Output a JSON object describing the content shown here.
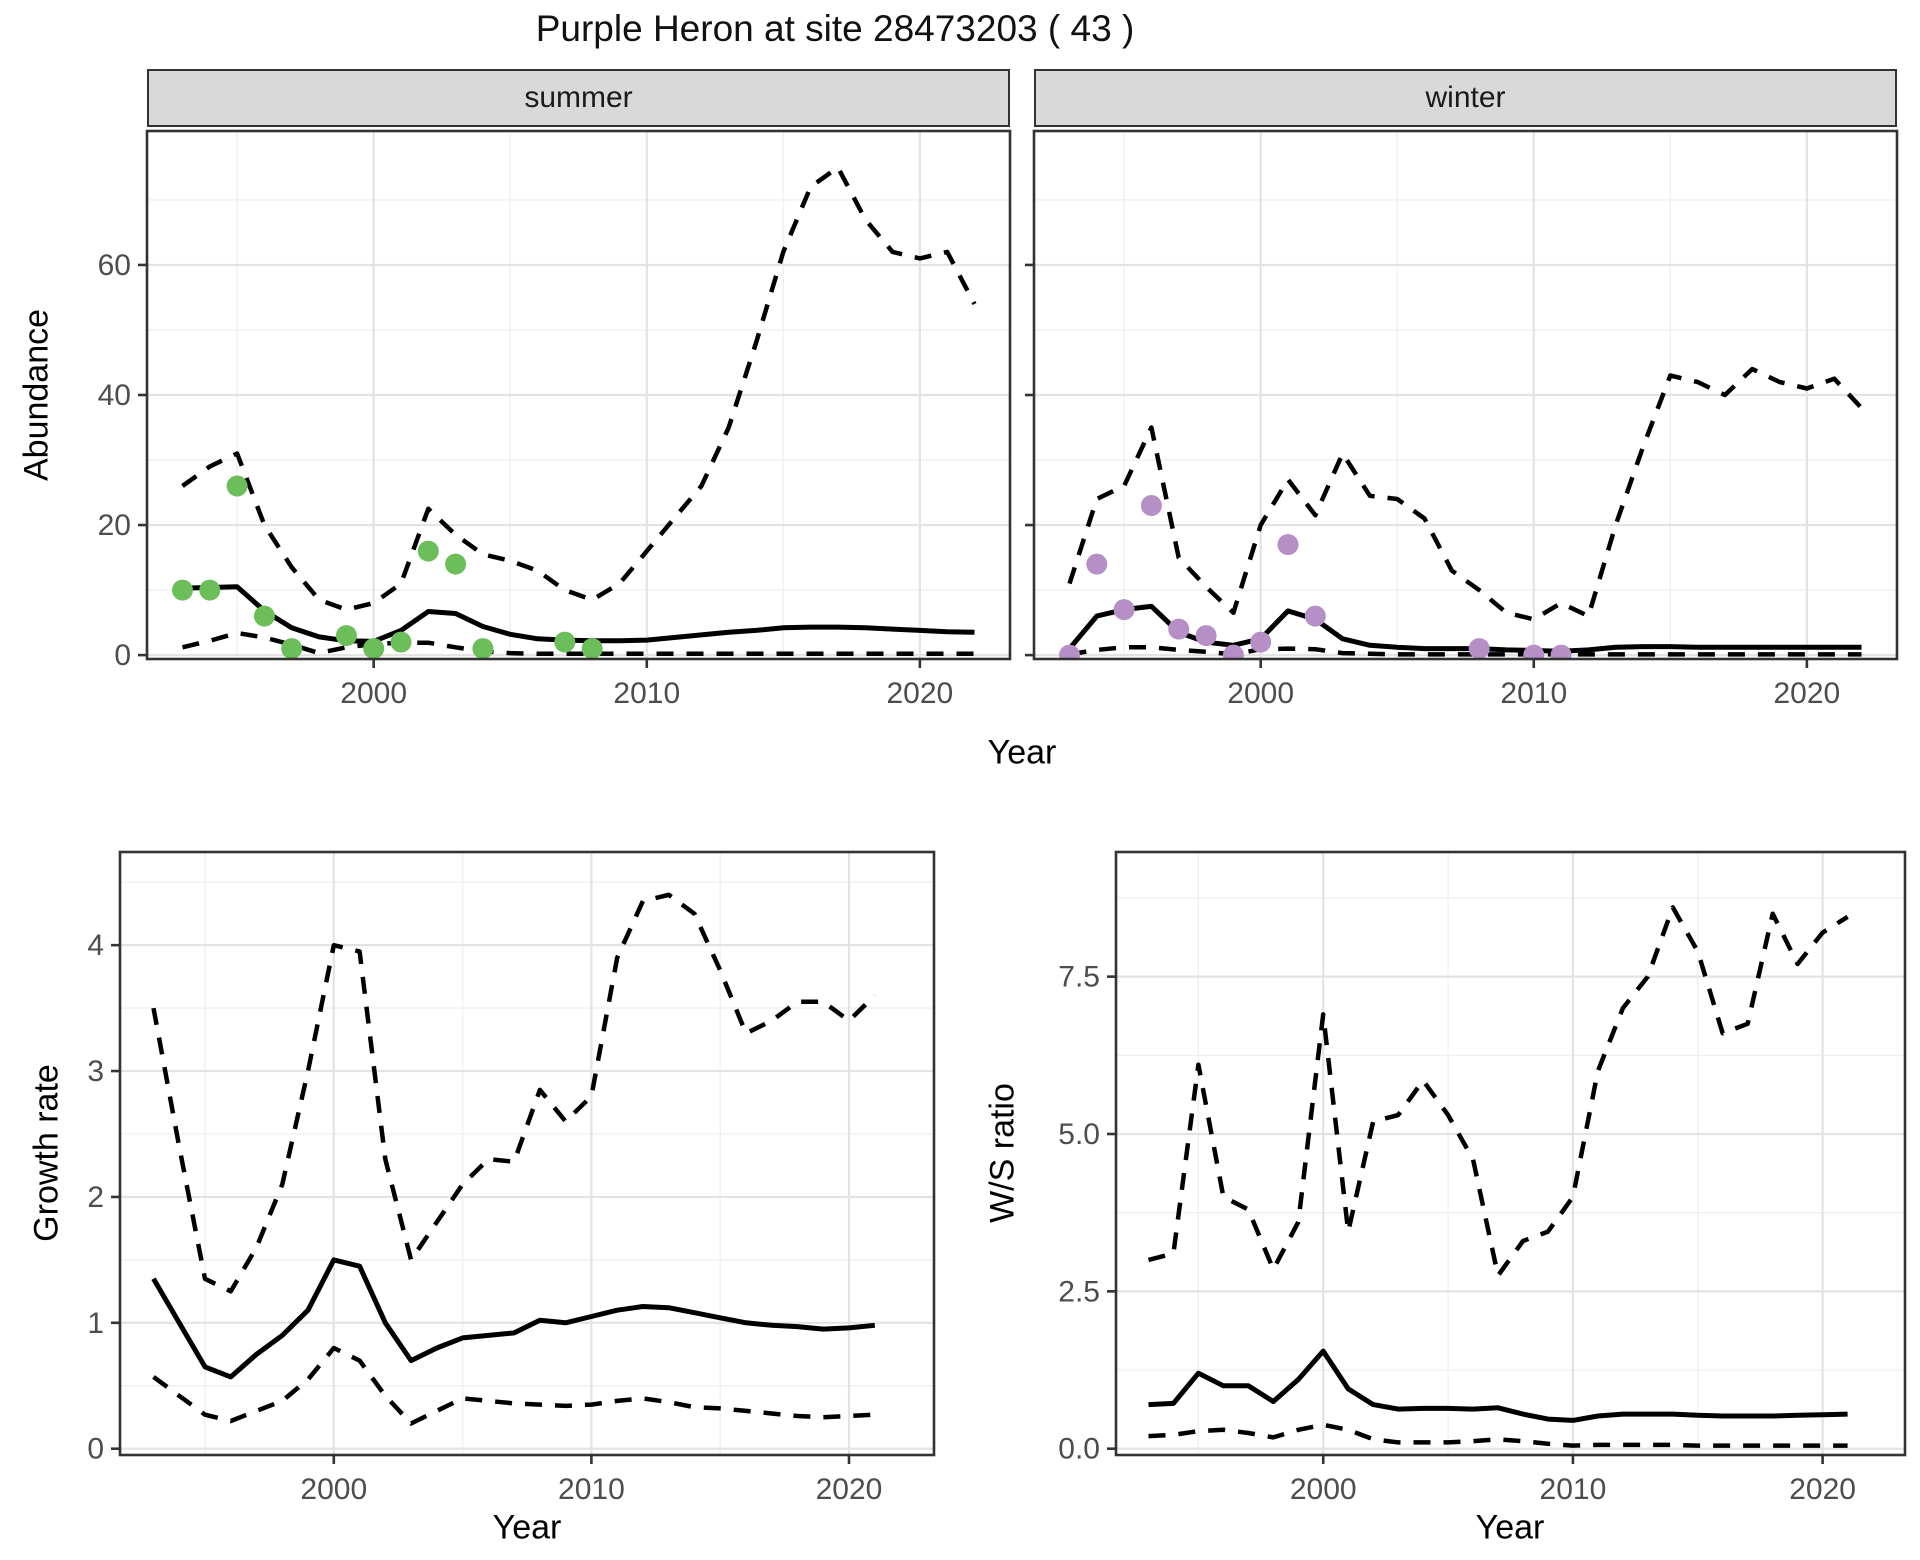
{
  "title": "Purple Heron at site 28473203 ( 43 )",
  "facets": {
    "summer": "summer",
    "winter": "winter"
  },
  "axes": {
    "abundance": "Abundance",
    "growth": "Growth rate",
    "ws": "W/S ratio",
    "year": "Year"
  },
  "colors": {
    "summer_dot": "#6CBE5B",
    "winter_dot": "#B58FC6",
    "line": "#000000",
    "grid_major": "#e3e3e3",
    "grid_minor": "#f0f0f0",
    "panel_border": "#333333",
    "strip_bg": "#d9d9d9",
    "tick_text": "#4d4d4d"
  },
  "chart_data": [
    {
      "name": "abundance-summer",
      "type": "line",
      "facet": "summer",
      "ylabel": "Abundance",
      "xlabel": "Year",
      "xlim": [
        1991.7,
        2023.3
      ],
      "ylim": [
        -0.6,
        80.6
      ],
      "xticks": {
        "major": [
          2000,
          2010,
          2020
        ],
        "minor": [
          1995,
          2005,
          2015
        ],
        "labels": [
          "2000",
          "2010",
          "2020"
        ]
      },
      "yticks": {
        "major": [
          0,
          20,
          40,
          60
        ],
        "minor": [
          10,
          30,
          50,
          70
        ],
        "labels": [
          "0",
          "20",
          "40",
          "60"
        ]
      },
      "x": [
        1993,
        1994,
        1995,
        1996,
        1997,
        1998,
        1999,
        2000,
        2001,
        2002,
        2003,
        2004,
        2005,
        2006,
        2007,
        2008,
        2009,
        2010,
        2011,
        2012,
        2013,
        2014,
        2015,
        2016,
        2017,
        2018,
        2019,
        2020,
        2021,
        2022
      ],
      "series": [
        {
          "name": "upper-ci",
          "style": "dashed",
          "values": [
            26,
            29,
            31,
            20,
            13.5,
            8.5,
            7,
            8,
            11,
            22.5,
            18.5,
            15.5,
            14.5,
            13,
            10,
            8.5,
            11,
            16,
            21,
            26,
            35,
            48,
            62,
            72,
            75,
            67,
            62,
            61,
            62,
            54
          ]
        },
        {
          "name": "mean",
          "style": "solid",
          "values": [
            10.3,
            10.4,
            10.5,
            6.8,
            4.2,
            2.8,
            2.2,
            2.1,
            3.8,
            6.7,
            6.4,
            4.4,
            3.2,
            2.5,
            2.3,
            2.2,
            2.2,
            2.3,
            2.7,
            3.1,
            3.5,
            3.8,
            4.2,
            4.3,
            4.3,
            4.2,
            4.0,
            3.8,
            3.6,
            3.5
          ]
        },
        {
          "name": "lower-ci",
          "style": "dashed",
          "values": [
            1.2,
            2.2,
            3.4,
            2.7,
            1.6,
            0.3,
            1.2,
            1.7,
            1.9,
            1.9,
            1.2,
            0.6,
            0.3,
            0.2,
            0.2,
            0.2,
            0.2,
            0.2,
            0.2,
            0.2,
            0.2,
            0.2,
            0.2,
            0.2,
            0.2,
            0.2,
            0.2,
            0.2,
            0.2,
            0.2
          ]
        }
      ],
      "points": {
        "name": "summer-observations",
        "color": "#6CBE5B",
        "data": [
          [
            1993,
            10
          ],
          [
            1994,
            10
          ],
          [
            1995,
            26
          ],
          [
            1996,
            6
          ],
          [
            1997,
            1
          ],
          [
            1999,
            3
          ],
          [
            2000,
            1
          ],
          [
            2001,
            2
          ],
          [
            2002,
            16
          ],
          [
            2003,
            14
          ],
          [
            2004,
            1
          ],
          [
            2007,
            2
          ],
          [
            2008,
            1
          ]
        ]
      }
    },
    {
      "name": "abundance-winter",
      "type": "line",
      "facet": "winter",
      "ylabel": "Abundance",
      "xlabel": "Year",
      "xlim": [
        1991.7,
        2023.3
      ],
      "ylim": [
        -0.6,
        80.6
      ],
      "xticks": {
        "major": [
          2000,
          2010,
          2020
        ],
        "minor": [
          1995,
          2005,
          2015
        ],
        "labels": [
          "2000",
          "2010",
          "2020"
        ]
      },
      "yticks": {
        "major": [
          0,
          20,
          40,
          60
        ],
        "minor": [
          10,
          30,
          50,
          70
        ],
        "labels": []
      },
      "x": [
        1993,
        1994,
        1995,
        1996,
        1997,
        1998,
        1999,
        2000,
        2001,
        2002,
        2003,
        2004,
        2005,
        2006,
        2007,
        2008,
        2009,
        2010,
        2011,
        2012,
        2013,
        2014,
        2015,
        2016,
        2017,
        2018,
        2019,
        2020,
        2021,
        2022
      ],
      "series": [
        {
          "name": "upper-ci",
          "style": "dashed",
          "values": [
            11,
            24,
            26,
            35,
            15,
            10.5,
            6.5,
            20,
            27,
            21.5,
            31,
            24.5,
            24,
            21,
            13,
            10,
            6.5,
            5.5,
            8,
            6,
            20,
            32,
            43,
            42,
            40,
            44,
            42,
            41,
            42.5,
            38
          ]
        },
        {
          "name": "mean",
          "style": "solid",
          "values": [
            1,
            6,
            7,
            7.5,
            3.5,
            2,
            1.5,
            2.5,
            6.8,
            5.5,
            2.5,
            1.5,
            1.2,
            1,
            1,
            1,
            0.8,
            0.7,
            0.6,
            0.8,
            1.2,
            1.3,
            1.3,
            1.2,
            1.2,
            1.2,
            1.2,
            1.2,
            1.2,
            1.2
          ]
        },
        {
          "name": "lower-ci",
          "style": "dashed",
          "values": [
            0.1,
            0.8,
            1.2,
            1.2,
            0.8,
            0.5,
            0.1,
            0.9,
            1.0,
            0.9,
            0.3,
            0.2,
            0.1,
            0.1,
            0.1,
            0.1,
            0.1,
            0.1,
            0.1,
            0.1,
            0.1,
            0.1,
            0.1,
            0.1,
            0.1,
            0.1,
            0.1,
            0.1,
            0.1,
            0.1
          ]
        }
      ],
      "points": {
        "name": "winter-observations",
        "color": "#B58FC6",
        "data": [
          [
            1993,
            0
          ],
          [
            1994,
            14
          ],
          [
            1995,
            7
          ],
          [
            1996,
            23
          ],
          [
            1997,
            4
          ],
          [
            1998,
            3
          ],
          [
            1999,
            0
          ],
          [
            2000,
            2
          ],
          [
            2001,
            17
          ],
          [
            2002,
            6
          ],
          [
            2008,
            1
          ],
          [
            2010,
            0
          ],
          [
            2011,
            0
          ]
        ]
      }
    },
    {
      "name": "growth-rate",
      "type": "line",
      "facet": null,
      "ylabel": "Growth rate",
      "xlabel": "Year",
      "xlim": [
        1991.7,
        2023.3
      ],
      "ylim": [
        -0.05,
        4.74
      ],
      "xticks": {
        "major": [
          2000,
          2010,
          2020
        ],
        "minor": [
          1995,
          2005,
          2015
        ],
        "labels": [
          "2000",
          "2010",
          "2020"
        ]
      },
      "yticks": {
        "major": [
          0,
          1,
          2,
          3,
          4
        ],
        "minor": [
          0.5,
          1.5,
          2.5,
          3.5,
          4.5
        ],
        "labels": [
          "0",
          "1",
          "2",
          "3",
          "4"
        ]
      },
      "x": [
        1993,
        1994,
        1995,
        1996,
        1997,
        1998,
        1999,
        2000,
        2001,
        2002,
        2003,
        2004,
        2005,
        2006,
        2007,
        2008,
        2009,
        2010,
        2011,
        2012,
        2013,
        2014,
        2015,
        2016,
        2017,
        2018,
        2019,
        2020,
        2021
      ],
      "series": [
        {
          "name": "upper-ci",
          "style": "dashed",
          "values": [
            3.5,
            2.4,
            1.35,
            1.25,
            1.6,
            2.1,
            3.0,
            4.0,
            3.95,
            2.3,
            1.5,
            1.8,
            2.1,
            2.3,
            2.28,
            2.85,
            2.6,
            2.8,
            3.9,
            4.35,
            4.4,
            4.25,
            3.8,
            3.3,
            3.4,
            3.55,
            3.55,
            3.4,
            3.6
          ]
        },
        {
          "name": "mean",
          "style": "solid",
          "values": [
            1.35,
            1.0,
            0.65,
            0.57,
            0.75,
            0.9,
            1.1,
            1.5,
            1.45,
            1.0,
            0.7,
            0.8,
            0.88,
            0.9,
            0.92,
            1.02,
            1.0,
            1.05,
            1.1,
            1.13,
            1.12,
            1.08,
            1.04,
            1.0,
            0.98,
            0.97,
            0.95,
            0.96,
            0.98
          ]
        },
        {
          "name": "lower-ci",
          "style": "dashed",
          "values": [
            0.57,
            0.42,
            0.27,
            0.22,
            0.3,
            0.38,
            0.55,
            0.8,
            0.7,
            0.42,
            0.2,
            0.3,
            0.4,
            0.38,
            0.36,
            0.35,
            0.34,
            0.35,
            0.38,
            0.4,
            0.37,
            0.33,
            0.32,
            0.3,
            0.28,
            0.26,
            0.25,
            0.26,
            0.27
          ]
        }
      ],
      "points": null
    },
    {
      "name": "ws-ratio",
      "type": "line",
      "facet": null,
      "ylabel": "W/S ratio",
      "xlabel": "Year",
      "xlim": [
        1991.7,
        2023.3
      ],
      "ylim": [
        -0.1,
        9.48
      ],
      "xticks": {
        "major": [
          2000,
          2010,
          2020
        ],
        "minor": [
          1995,
          2005,
          2015
        ],
        "labels": [
          "2000",
          "2010",
          "2020"
        ]
      },
      "yticks": {
        "major": [
          0,
          2.5,
          5,
          7.5
        ],
        "minor": [
          1.25,
          3.75,
          6.25,
          8.75
        ],
        "labels": [
          "0.0",
          "2.5",
          "5.0",
          "7.5"
        ]
      },
      "x": [
        1993,
        1994,
        1995,
        1996,
        1997,
        1998,
        1999,
        2000,
        2001,
        2002,
        2003,
        2004,
        2005,
        2006,
        2007,
        2008,
        2009,
        2010,
        2011,
        2012,
        2013,
        2014,
        2015,
        2016,
        2017,
        2018,
        2019,
        2020,
        2021
      ],
      "series": [
        {
          "name": "upper-ci",
          "style": "dashed",
          "values": [
            3.0,
            3.1,
            6.1,
            4.0,
            3.8,
            2.85,
            3.6,
            6.9,
            3.45,
            5.2,
            5.3,
            5.85,
            5.3,
            4.6,
            2.75,
            3.3,
            3.45,
            4.0,
            6.0,
            7.0,
            7.5,
            8.6,
            7.9,
            6.6,
            6.75,
            8.5,
            7.7,
            8.2,
            8.45
          ]
        },
        {
          "name": "mean",
          "style": "solid",
          "values": [
            0.7,
            0.72,
            1.2,
            1.0,
            1.0,
            0.75,
            1.1,
            1.55,
            0.95,
            0.7,
            0.63,
            0.64,
            0.64,
            0.63,
            0.65,
            0.55,
            0.47,
            0.45,
            0.52,
            0.55,
            0.55,
            0.55,
            0.53,
            0.52,
            0.52,
            0.52,
            0.53,
            0.54,
            0.55
          ]
        },
        {
          "name": "lower-ci",
          "style": "dashed",
          "values": [
            0.2,
            0.22,
            0.28,
            0.3,
            0.25,
            0.18,
            0.3,
            0.38,
            0.3,
            0.15,
            0.1,
            0.1,
            0.1,
            0.12,
            0.15,
            0.12,
            0.08,
            0.05,
            0.06,
            0.06,
            0.06,
            0.06,
            0.05,
            0.05,
            0.05,
            0.05,
            0.05,
            0.05,
            0.05
          ]
        }
      ],
      "points": null
    }
  ]
}
